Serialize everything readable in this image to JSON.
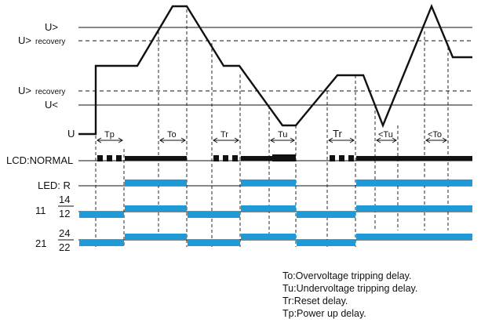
{
  "levels": {
    "u_over": "U>",
    "u_over_recovery_upper": "U>",
    "u_over_recovery_upper_suffix": "recovery",
    "u_over_recovery_lower": "U>",
    "u_over_recovery_lower_suffix": "recovery",
    "u_under": "U<",
    "u": "U"
  },
  "rows": {
    "lcd": "LCD:NORMAL",
    "led": "LED: R",
    "relay1_common": "11",
    "relay1_no": "14",
    "relay1_nc": "12",
    "relay2_common": "21",
    "relay2_no": "24",
    "relay2_nc": "22"
  },
  "intervals": {
    "tp": "Tp",
    "to1": "To",
    "tr1": "Tr",
    "tu1": "Tu",
    "tr2": "Tr",
    "tu2": "<Tu",
    "to2": "<To"
  },
  "legend": [
    "To:Overvoltage tripping delay.",
    "Tu:Undervoltage tripping delay.",
    "Tr:Reset delay.",
    "Tp:Power up delay."
  ],
  "colors": {
    "relay_bar": "#1f9ad6",
    "line": "#111111"
  }
}
